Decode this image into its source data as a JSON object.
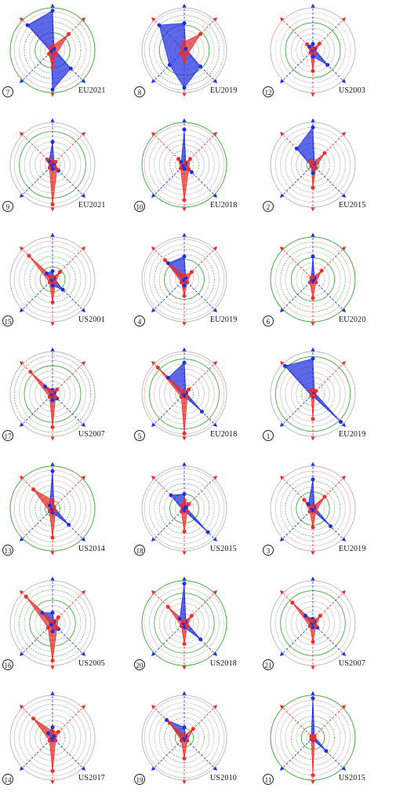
{
  "chart_data": [
    {
      "type": "radar",
      "rank": "7",
      "label": "EU2021",
      "blue": [
        0.95,
        0.05,
        0.62,
        0.95,
        0.05,
        0.85
      ],
      "red": [
        0.1,
        0.55,
        0.12,
        0.42,
        0.12,
        0.08
      ]
    },
    {
      "type": "radar",
      "rank": "8",
      "label": "EU2019",
      "blue": [
        0.65,
        0.05,
        0.55,
        0.9,
        0.5,
        0.85
      ],
      "red": [
        0.2,
        0.55,
        0.12,
        0.25,
        0.12,
        0.1
      ]
    },
    {
      "type": "radar",
      "rank": "12",
      "label": "US2003",
      "blue": [
        0.15,
        0.05,
        0.5,
        0.15,
        0.05,
        0.12
      ],
      "red": [
        0.05,
        0.22,
        0.08,
        0.5,
        0.08,
        0.2
      ]
    },
    {
      "type": "radar",
      "rank": "9",
      "label": "EU2021",
      "blue": [
        0.55,
        0.05,
        0.2,
        0.1,
        0.05,
        0.12
      ],
      "red": [
        0.1,
        0.1,
        0.15,
        0.95,
        0.1,
        0.18
      ]
    },
    {
      "type": "radar",
      "rank": "10",
      "label": "EU2018",
      "blue": [
        0.85,
        0.05,
        0.25,
        0.1,
        0.05,
        0.1
      ],
      "red": [
        0.05,
        0.2,
        0.15,
        0.85,
        0.12,
        0.2
      ]
    },
    {
      "type": "radar",
      "rank": "2",
      "label": "EU2015",
      "blue": [
        0.9,
        0.05,
        0.1,
        0.2,
        0.05,
        0.55
      ],
      "red": [
        0.05,
        0.4,
        0.1,
        0.55,
        0.05,
        0.1
      ]
    },
    {
      "type": "radar",
      "rank": "15",
      "label": "US2001",
      "blue": [
        0.2,
        0.05,
        0.35,
        0.15,
        0.05,
        0.2
      ],
      "red": [
        0.05,
        0.25,
        0.1,
        0.55,
        0.1,
        0.8
      ]
    },
    {
      "type": "radar",
      "rank": "4",
      "label": "EU2019",
      "blue": [
        0.55,
        0.05,
        0.1,
        0.15,
        0.05,
        0.55
      ],
      "red": [
        0.1,
        0.25,
        0.1,
        0.4,
        0.1,
        0.65
      ]
    },
    {
      "type": "radar",
      "rank": "6",
      "label": "EU2020",
      "blue": [
        0.55,
        0.05,
        0.05,
        0.05,
        0.05,
        0.05
      ],
      "red": [
        0.05,
        0.3,
        0.1,
        0.45,
        0.1,
        0.05
      ]
    },
    {
      "type": "radar",
      "rank": "17",
      "label": "US2007",
      "blue": [
        0.1,
        0.05,
        0.15,
        0.15,
        0.05,
        0.25
      ],
      "red": [
        0.05,
        0.15,
        0.1,
        0.8,
        0.1,
        0.75
      ]
    },
    {
      "type": "radar",
      "rank": "5",
      "label": "EU2018",
      "blue": [
        0.75,
        0.05,
        0.6,
        0.05,
        0.05,
        0.55
      ],
      "red": [
        0.05,
        0.15,
        0.1,
        0.95,
        0.1,
        0.9
      ]
    },
    {
      "type": "radar",
      "rank": "1",
      "label": "EU2019",
      "blue": [
        0.85,
        0.05,
        0.95,
        0.05,
        0.05,
        0.95
      ],
      "red": [
        0.1,
        0.1,
        0.05,
        0.6,
        0.05,
        0.1
      ]
    },
    {
      "type": "radar",
      "rank": "13",
      "label": "US2014",
      "blue": [
        0.9,
        0.05,
        0.55,
        0.1,
        0.05,
        0.1
      ],
      "red": [
        0.2,
        0.05,
        0.1,
        0.7,
        0.1,
        0.65
      ]
    },
    {
      "type": "radar",
      "rank": "18",
      "label": "US2015",
      "blue": [
        0.35,
        0.05,
        0.8,
        0.05,
        0.05,
        0.45
      ],
      "red": [
        0.2,
        0.15,
        0.1,
        0.55,
        0.1,
        0.1
      ]
    },
    {
      "type": "radar",
      "rank": "3",
      "label": "EU2019",
      "blue": [
        0.7,
        0.05,
        0.6,
        0.05,
        0.05,
        0.15
      ],
      "red": [
        0.05,
        0.4,
        0.1,
        0.45,
        0.1,
        0.3
      ]
    },
    {
      "type": "radar",
      "rank": "16",
      "label": "US2005",
      "blue": [
        0.25,
        0.05,
        0.2,
        0.2,
        0.05,
        0.35
      ],
      "red": [
        0.05,
        0.2,
        0.15,
        0.9,
        0.15,
        0.9
      ]
    },
    {
      "type": "radar",
      "rank": "20",
      "label": "US2018",
      "blue": [
        0.95,
        0.05,
        0.55,
        0.1,
        0.05,
        0.15
      ],
      "red": [
        0.05,
        0.25,
        0.1,
        0.5,
        0.1,
        0.55
      ]
    },
    {
      "type": "radar",
      "rank": "21",
      "label": "US2007",
      "blue": [
        0.1,
        0.05,
        0.15,
        0.1,
        0.05,
        0.25
      ],
      "red": [
        0.05,
        0.25,
        0.1,
        0.45,
        0.1,
        0.7
      ]
    },
    {
      "type": "radar",
      "rank": "14",
      "label": "US2017",
      "blue": [
        0.25,
        0.05,
        0.1,
        0.05,
        0.05,
        0.15
      ],
      "red": [
        0.15,
        0.2,
        0.1,
        0.8,
        0.1,
        0.65
      ]
    },
    {
      "type": "radar",
      "rank": "19",
      "label": "US2010",
      "blue": [
        0.25,
        0.05,
        0.1,
        0.05,
        0.05,
        0.6
      ],
      "red": [
        0.05,
        0.3,
        0.1,
        0.5,
        0.1,
        0.5
      ]
    },
    {
      "type": "radar",
      "rank": "11",
      "label": "US2015",
      "blue": [
        0.95,
        0.05,
        0.45,
        0.05,
        0.05,
        0.05
      ],
      "red": [
        0.05,
        0.05,
        0.05,
        0.9,
        0.05,
        0.05
      ]
    }
  ],
  "colors": {
    "blue": "#1f2fe0",
    "red": "#e8302c",
    "ring_gray": "#b9b9b9",
    "ring_green": "#3fae3a",
    "ring_pink": "#e7a3a3"
  }
}
